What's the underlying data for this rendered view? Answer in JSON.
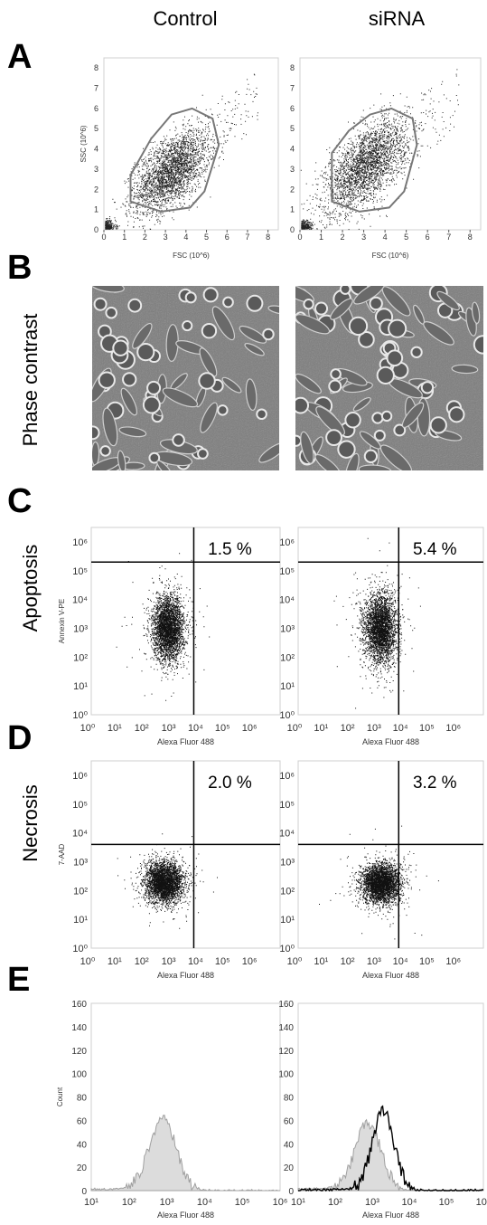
{
  "figure": {
    "columns": [
      "Control",
      "siRNA"
    ],
    "panels": [
      {
        "letter": "A",
        "side_label": ""
      },
      {
        "letter": "B",
        "side_label": "Phase contrast"
      },
      {
        "letter": "C",
        "side_label": "Apoptosis"
      },
      {
        "letter": "D",
        "side_label": "Necrosis"
      },
      {
        "letter": "E",
        "side_label": ""
      }
    ]
  },
  "chart_data": [
    {
      "panel": "A",
      "column": "Control",
      "type": "scatter",
      "xlabel": "FSC (10^6)",
      "ylabel": "SSC (10^6)",
      "xlim": [
        0,
        8.5
      ],
      "ylim": [
        0,
        8.5
      ],
      "xticks": [
        "0",
        "1",
        "2",
        "3",
        "4",
        "5",
        "6",
        "7",
        "8"
      ],
      "yticks": [
        "0",
        "1",
        "2",
        "3",
        "4",
        "5",
        "6",
        "7",
        "8"
      ],
      "cloud_center": [
        3.3,
        2.9
      ],
      "cloud_spread": [
        0.9,
        1.0
      ],
      "cloud_corr": 0.55,
      "gate": [
        [
          1.3,
          2.7
        ],
        [
          2.3,
          4.5
        ],
        [
          3.3,
          5.7
        ],
        [
          4.3,
          6.0
        ],
        [
          5.3,
          5.5
        ],
        [
          5.6,
          4.2
        ],
        [
          4.9,
          1.9
        ],
        [
          4.2,
          1.1
        ],
        [
          2.8,
          0.9
        ],
        [
          1.3,
          1.4
        ]
      ]
    },
    {
      "panel": "A",
      "column": "siRNA",
      "type": "scatter",
      "xlabel": "FSC (10^6)",
      "ylabel": "",
      "xlim": [
        0,
        8.5
      ],
      "ylim": [
        0,
        8.5
      ],
      "xticks": [
        "0",
        "1",
        "2",
        "3",
        "4",
        "5",
        "6",
        "7",
        "8"
      ],
      "yticks": [
        "0",
        "1",
        "2",
        "3",
        "4",
        "5",
        "6",
        "7",
        "8"
      ],
      "cloud_center": [
        3.1,
        3.2
      ],
      "cloud_spread": [
        0.95,
        1.15
      ],
      "cloud_corr": 0.6,
      "gate": [
        [
          1.5,
          3.8
        ],
        [
          2.3,
          4.9
        ],
        [
          3.3,
          5.7
        ],
        [
          4.3,
          6.0
        ],
        [
          5.3,
          5.5
        ],
        [
          5.5,
          4.2
        ],
        [
          4.9,
          1.9
        ],
        [
          4.2,
          1.1
        ],
        [
          2.8,
          0.9
        ],
        [
          1.5,
          1.4
        ]
      ]
    },
    {
      "panel": "C",
      "column": "Control",
      "type": "scatter",
      "xlabel": "Alexa Fluor 488",
      "ylabel": "Annexin V-PE",
      "xscale": "log",
      "yscale": "log",
      "xlim": [
        0,
        7
      ],
      "ylim": [
        0,
        6.5
      ],
      "quadrant_x": 3.8,
      "quadrant_y": 5.3,
      "percent_label": "1.5 %",
      "cloud_center": [
        2.85,
        3.0
      ],
      "cloud_spread": [
        0.28,
        0.55
      ]
    },
    {
      "panel": "C",
      "column": "siRNA",
      "type": "scatter",
      "xlabel": "Alexa Fluor 488",
      "ylabel": "",
      "xscale": "log",
      "yscale": "log",
      "xlim": [
        0,
        7
      ],
      "ylim": [
        0,
        6.5
      ],
      "quadrant_x": 3.8,
      "quadrant_y": 5.3,
      "percent_label": "5.4 %",
      "cloud_center": [
        3.1,
        3.0
      ],
      "cloud_spread": [
        0.3,
        0.6
      ]
    },
    {
      "panel": "D",
      "column": "Control",
      "type": "scatter",
      "xlabel": "Alexa Fluor 488",
      "ylabel": "7-AAD",
      "xscale": "log",
      "yscale": "log",
      "xlim": [
        0,
        7
      ],
      "ylim": [
        0,
        6.5
      ],
      "quadrant_x": 3.8,
      "quadrant_y": 3.6,
      "percent_label": "2.0 %",
      "cloud_center": [
        2.7,
        2.3
      ],
      "cloud_spread": [
        0.35,
        0.35
      ]
    },
    {
      "panel": "D",
      "column": "siRNA",
      "type": "scatter",
      "xlabel": "Alexa Fluor 488",
      "ylabel": "",
      "xscale": "log",
      "yscale": "log",
      "xlim": [
        0,
        7
      ],
      "ylim": [
        0,
        6.5
      ],
      "quadrant_x": 3.8,
      "quadrant_y": 3.6,
      "percent_label": "3.2 %",
      "cloud_center": [
        3.1,
        2.25
      ],
      "cloud_spread": [
        0.35,
        0.35
      ]
    },
    {
      "panel": "E",
      "column": "Control",
      "type": "area",
      "xlabel": "Alexa Fluor 488",
      "ylabel": "Count",
      "xscale": "log",
      "xlim": [
        1,
        6
      ],
      "ylim": [
        0,
        160
      ],
      "yticks": [
        "0",
        "20",
        "40",
        "60",
        "80",
        "100",
        "120",
        "140",
        "160"
      ],
      "series": [
        {
          "color": "#bdbdbd",
          "peak_log": 2.9,
          "peak": 60,
          "width": 0.35,
          "tail": 7
        }
      ]
    },
    {
      "panel": "E",
      "column": "siRNA",
      "type": "area",
      "xlabel": "Alexa Fluor 488",
      "ylabel": "",
      "xscale": "log",
      "xlim": [
        1,
        6
      ],
      "ylim": [
        0,
        160
      ],
      "yticks": [
        "0",
        "20",
        "40",
        "60",
        "80",
        "100",
        "120",
        "140",
        "160"
      ],
      "series": [
        {
          "color": "#bdbdbd",
          "peak_log": 2.9,
          "peak": 55,
          "width": 0.35,
          "tail": 7
        },
        {
          "color": "#000000",
          "peak_log": 3.3,
          "peak": 66,
          "width": 0.3,
          "tail": 3
        }
      ]
    }
  ]
}
